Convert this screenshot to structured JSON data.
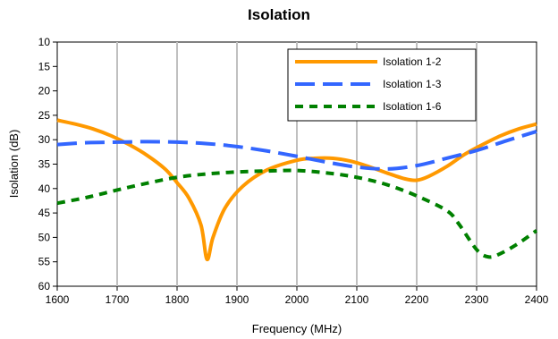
{
  "chart_data": {
    "type": "line",
    "title": "Isolation",
    "xlabel": "Frequency (MHz)",
    "ylabel": "Isolation (dB)",
    "xlim": [
      1600,
      2400
    ],
    "ylim": [
      10,
      60
    ],
    "y_inverted": true,
    "x_ticks": [
      1600,
      1700,
      1800,
      1900,
      2000,
      2100,
      2200,
      2300,
      2400
    ],
    "y_ticks": [
      10,
      15,
      20,
      25,
      30,
      35,
      40,
      45,
      50,
      55,
      60
    ],
    "grid": "vertical",
    "legend_position": "top-right",
    "series": [
      {
        "name": "Isolation 1-2",
        "color": "#FF9900",
        "dash": "solid",
        "x": [
          1600,
          1630,
          1660,
          1690,
          1720,
          1750,
          1780,
          1800,
          1820,
          1840,
          1850,
          1860,
          1880,
          1910,
          1950,
          2000,
          2030,
          2060,
          2090,
          2120,
          2150,
          2180,
          2200,
          2220,
          2250,
          2280,
          2310,
          2340,
          2370,
          2400
        ],
        "y": [
          26,
          26.8,
          27.8,
          29.2,
          31,
          33.2,
          36,
          38.8,
          42,
          47.5,
          54.5,
          50,
          44,
          39.5,
          36.2,
          34.2,
          33.8,
          33.8,
          34.4,
          35.5,
          36.8,
          38,
          38.3,
          37.5,
          35.5,
          33,
          31,
          29.2,
          27.8,
          26.8
        ]
      },
      {
        "name": "Isolation 1-3",
        "color": "#3366FF",
        "dash": "long-dash",
        "x": [
          1600,
          1650,
          1700,
          1750,
          1800,
          1850,
          1900,
          1950,
          2000,
          2050,
          2100,
          2150,
          2200,
          2250,
          2300,
          2350,
          2400
        ],
        "y": [
          31,
          30.6,
          30.5,
          30.4,
          30.5,
          30.8,
          31.4,
          32.3,
          33.4,
          34.6,
          35.6,
          36,
          35.3,
          33.8,
          32.2,
          30.2,
          28.3
        ]
      },
      {
        "name": "Isolation 1-6",
        "color": "#008000",
        "dash": "short-dash",
        "x": [
          1600,
          1650,
          1700,
          1750,
          1800,
          1850,
          1900,
          1950,
          2000,
          2050,
          2100,
          2150,
          2200,
          2250,
          2270,
          2300,
          2320,
          2340,
          2370,
          2400
        ],
        "y": [
          43,
          41.8,
          40.3,
          38.9,
          37.7,
          37,
          36.6,
          36.4,
          36.3,
          36.8,
          37.7,
          39.2,
          41.5,
          44.5,
          47.2,
          52.5,
          54,
          53.3,
          51.2,
          48.6
        ]
      }
    ]
  }
}
